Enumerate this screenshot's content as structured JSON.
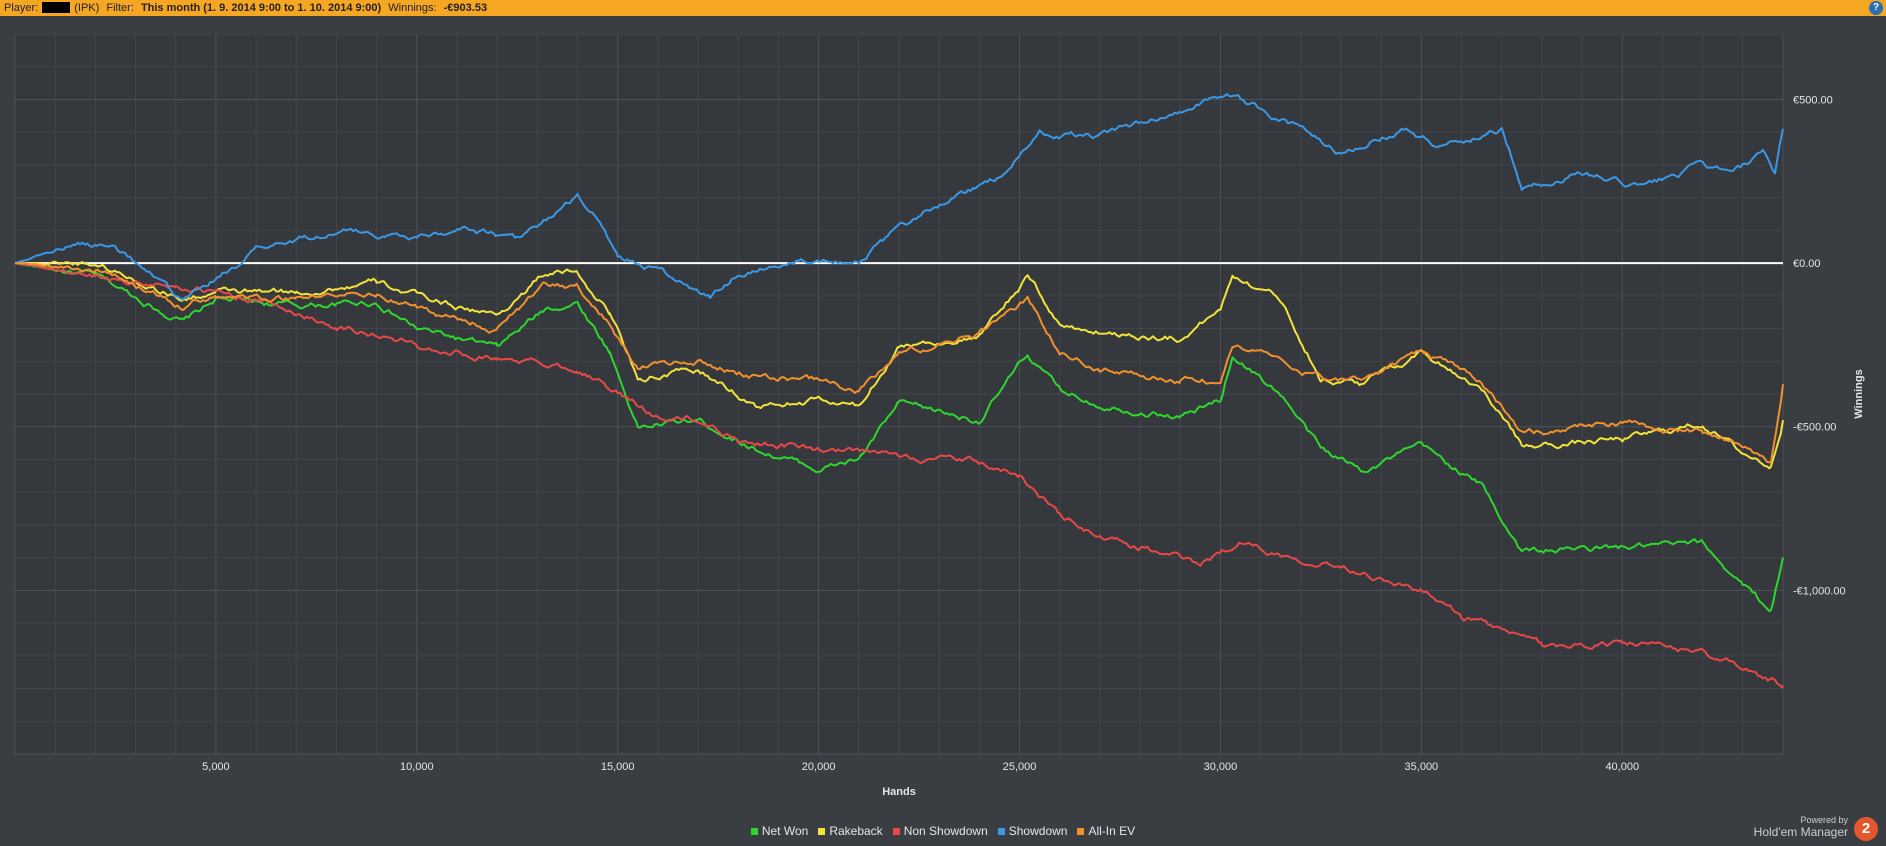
{
  "header": {
    "player_label": "Player:",
    "player_suffix": "(IPK)",
    "filter_label": "Filter:",
    "filter_value": "This month (1. 9. 2014 9:00 to 1. 10. 2014 9:00)",
    "winnings_label": "Winnings:",
    "winnings_value": "-€903.53",
    "help_icon": "help-icon",
    "accent_color": "#f5a623"
  },
  "branding": {
    "powered_by": "Powered by",
    "product": "Hold'em Manager",
    "logo_text": "2"
  },
  "chart_data": {
    "type": "line",
    "xlabel": "Hands",
    "ylabel": "Winnings",
    "xlim": [
      0,
      44000
    ],
    "ylim": [
      -1500,
      700
    ],
    "x_ticks": [
      5000,
      10000,
      15000,
      20000,
      25000,
      30000,
      35000,
      40000
    ],
    "x_tick_labels": [
      "5,000",
      "10,000",
      "15,000",
      "20,000",
      "25,000",
      "30,000",
      "35,000",
      "40,000"
    ],
    "y_ticks": [
      500,
      0,
      -500,
      -1000
    ],
    "y_tick_labels": [
      "€500.00",
      "€0.00",
      "-€500.00",
      "-€1,000.00"
    ],
    "grid": true,
    "legend_position": "bottom",
    "series": [
      {
        "name": "Net Won",
        "color": "#2ed62e",
        "x": [
          0,
          2000,
          4200,
          5000,
          7000,
          9000,
          10000,
          12000,
          13200,
          14000,
          14800,
          15500,
          17000,
          18500,
          20000,
          21000,
          22000,
          24000,
          25200,
          26000,
          27000,
          29000,
          30000,
          30300,
          31500,
          32500,
          33500,
          35000,
          36500,
          37500,
          40000,
          42000,
          43000,
          43700,
          44000
        ],
        "y": [
          0,
          -40,
          -180,
          -110,
          -130,
          -120,
          -200,
          -260,
          -140,
          -120,
          -270,
          -500,
          -480,
          -570,
          -630,
          -600,
          -430,
          -480,
          -280,
          -390,
          -430,
          -470,
          -420,
          -280,
          -400,
          -570,
          -630,
          -560,
          -680,
          -880,
          -870,
          -860,
          -980,
          -1060,
          -900
        ]
      },
      {
        "name": "Rakeback",
        "color": "#f2e33a",
        "x": [
          0,
          2000,
          4200,
          5000,
          7000,
          9000,
          10000,
          12000,
          13200,
          14000,
          14800,
          15500,
          17000,
          18500,
          20000,
          21000,
          22000,
          24000,
          25200,
          26000,
          27000,
          29000,
          30000,
          30300,
          31500,
          32500,
          33500,
          35000,
          36500,
          37500,
          40000,
          42000,
          43000,
          43700,
          44000
        ],
        "y": [
          0,
          0,
          -110,
          -90,
          -90,
          -60,
          -100,
          -160,
          -30,
          -30,
          -150,
          -350,
          -330,
          -440,
          -420,
          -440,
          -250,
          -230,
          -40,
          -190,
          -210,
          -230,
          -140,
          -30,
          -110,
          -350,
          -370,
          -270,
          -380,
          -560,
          -540,
          -490,
          -580,
          -620,
          -480
        ]
      },
      {
        "name": "Non Showdown",
        "color": "#e84848",
        "x": [
          0,
          2000,
          4000,
          6000,
          8000,
          10000,
          12000,
          14000,
          15000,
          16000,
          17000,
          18000,
          20000,
          22000,
          24000,
          25000,
          26000,
          27000,
          28000,
          29500,
          30500,
          31500,
          33000,
          35000,
          36000,
          38000,
          40000,
          42000,
          44000
        ],
        "y": [
          0,
          -40,
          -70,
          -110,
          -190,
          -250,
          -290,
          -320,
          -400,
          -470,
          -480,
          -540,
          -570,
          -590,
          -610,
          -650,
          -770,
          -840,
          -870,
          -920,
          -850,
          -890,
          -920,
          -1000,
          -1080,
          -1170,
          -1160,
          -1190,
          -1290
        ]
      },
      {
        "name": "Showdown",
        "color": "#3a98e6",
        "x": [
          0,
          1500,
          2500,
          4200,
          6000,
          8000,
          10000,
          11000,
          12500,
          14000,
          14500,
          15000,
          16000,
          17300,
          18000,
          20000,
          21000,
          22000,
          23000,
          24500,
          25500,
          27000,
          29500,
          30200,
          31500,
          33000,
          34500,
          35500,
          37000,
          37500,
          39000,
          40500,
          42000,
          42700,
          43500,
          43800,
          44000
        ],
        "y": [
          0,
          60,
          50,
          -120,
          40,
          100,
          80,
          110,
          70,
          200,
          130,
          20,
          -20,
          -110,
          -30,
          20,
          10,
          100,
          180,
          260,
          390,
          390,
          490,
          520,
          440,
          340,
          410,
          360,
          410,
          230,
          270,
          230,
          300,
          270,
          330,
          260,
          410
        ]
      },
      {
        "name": "All-In EV",
        "color": "#f2902e",
        "x": [
          0,
          2000,
          4200,
          5000,
          7000,
          9000,
          10000,
          12000,
          13200,
          14000,
          14800,
          15500,
          17000,
          18500,
          20000,
          21000,
          22000,
          24000,
          25200,
          26000,
          27000,
          29000,
          30000,
          30300,
          31500,
          32500,
          33500,
          35000,
          36500,
          37500,
          40000,
          42000,
          43000,
          43700,
          44000
        ],
        "y": [
          0,
          -20,
          -130,
          -100,
          -110,
          -90,
          -140,
          -200,
          -70,
          -70,
          -190,
          -320,
          -300,
          -350,
          -360,
          -390,
          -280,
          -220,
          -110,
          -270,
          -320,
          -360,
          -360,
          -260,
          -300,
          -350,
          -360,
          -270,
          -360,
          -520,
          -490,
          -520,
          -560,
          -610,
          -370
        ]
      }
    ]
  }
}
